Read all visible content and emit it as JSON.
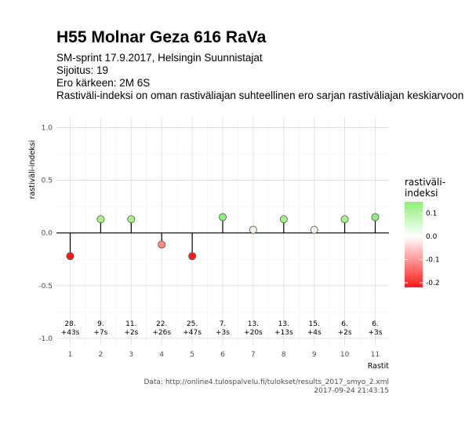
{
  "chart_data": {
    "type": "scatter",
    "title": "H55 Molnar Geza 616 RaVa",
    "subtitle_lines": [
      "SM-sprint 17.9.2017, Helsingin Suunnistajat",
      "Sijoitus: 19",
      "Ero kärkeen: 2M 6S",
      "Rastiväli-indeksi on oman rastiväliajan suhteellinen ero sarjan rastiväliajan keskiarvoon"
    ],
    "xlabel": "Rastit",
    "ylabel": "rastiväli-indeksi",
    "ylim": [
      -1.0,
      1.0
    ],
    "y_ticks": [
      1.0,
      0.5,
      0.0,
      -0.5,
      -1.0
    ],
    "y_tick_labels": [
      "1.0",
      "0.5",
      "0.0",
      "-0.5",
      "-1.0"
    ],
    "x": [
      1,
      2,
      3,
      4,
      5,
      6,
      7,
      8,
      9,
      10,
      11
    ],
    "x_tick_labels": [
      "1",
      "2",
      "3",
      "4",
      "5",
      "6",
      "7",
      "8",
      "9",
      "10",
      "11"
    ],
    "values": [
      -0.22,
      0.13,
      0.13,
      -0.11,
      -0.22,
      0.15,
      0.03,
      0.13,
      0.03,
      0.13,
      0.15
    ],
    "point_colors": [
      "#ff1a1a",
      "#a6f08c",
      "#a6f08c",
      "#f58e7d",
      "#ff1a1a",
      "#8ef07a",
      "#eaf7e3",
      "#a6f08c",
      "#eaf7e3",
      "#a6f08c",
      "#8ef07a"
    ],
    "annotations": [
      [
        "28.",
        "+43s"
      ],
      [
        "9.",
        "+7s"
      ],
      [
        "11.",
        "+2s"
      ],
      [
        "22.",
        "+26s"
      ],
      [
        "25.",
        "+47s"
      ],
      [
        "7.",
        "+3s"
      ],
      [
        "13.",
        "+20s"
      ],
      [
        "13.",
        "+13s"
      ],
      [
        "15.",
        "+4s"
      ],
      [
        "6.",
        "+2s"
      ],
      [
        "6.",
        "+3s"
      ]
    ],
    "legend": {
      "title_lines": [
        "rastiväli-",
        "indeksi"
      ],
      "ticks": [
        0.1,
        0.0,
        -0.1,
        -0.2
      ],
      "tick_labels": [
        "0.1",
        "0.0",
        "-0.1",
        "-0.2"
      ],
      "range": [
        -0.22,
        0.15
      ],
      "colors": {
        "high": "#8ef07a",
        "mid": "#ffffff",
        "low": "#ff1a1a"
      },
      "placement": "right"
    },
    "grid": true,
    "caption_lines": [
      "Data: http://online4.tulospalvelu.fi/tulokset/results_2017_smyo_2.xml",
      "2017-09-24 21:43:15"
    ]
  }
}
